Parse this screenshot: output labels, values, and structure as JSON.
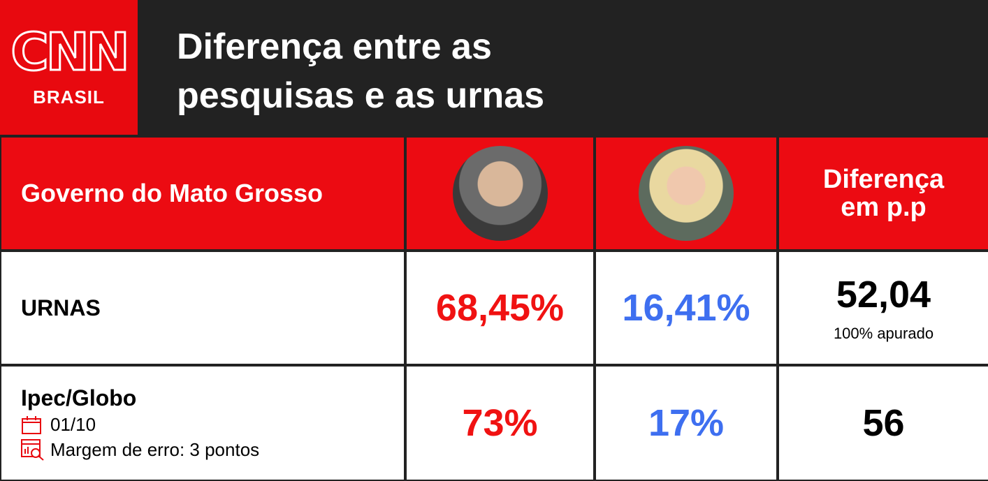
{
  "logo": {
    "name": "CNN",
    "subtitle": "BRASIL"
  },
  "header": {
    "title_lines": [
      "Diferença entre as",
      "pesquisas e as urnas"
    ]
  },
  "table": {
    "header": {
      "label": "Governo do Mato Grosso",
      "difference_lines": [
        "Diferença",
        "em p.p"
      ]
    },
    "rows": [
      {
        "label": "URNAS",
        "candidate_1": "68,45%",
        "candidate_2": "16,41%",
        "difference": "52,04",
        "note": "100% apurado"
      },
      {
        "label": "Ipec/Globo",
        "date": "01/10",
        "margin": "Margem de erro: 3 pontos",
        "candidate_1": "73%",
        "candidate_2": "17%",
        "difference": "56"
      }
    ]
  }
}
